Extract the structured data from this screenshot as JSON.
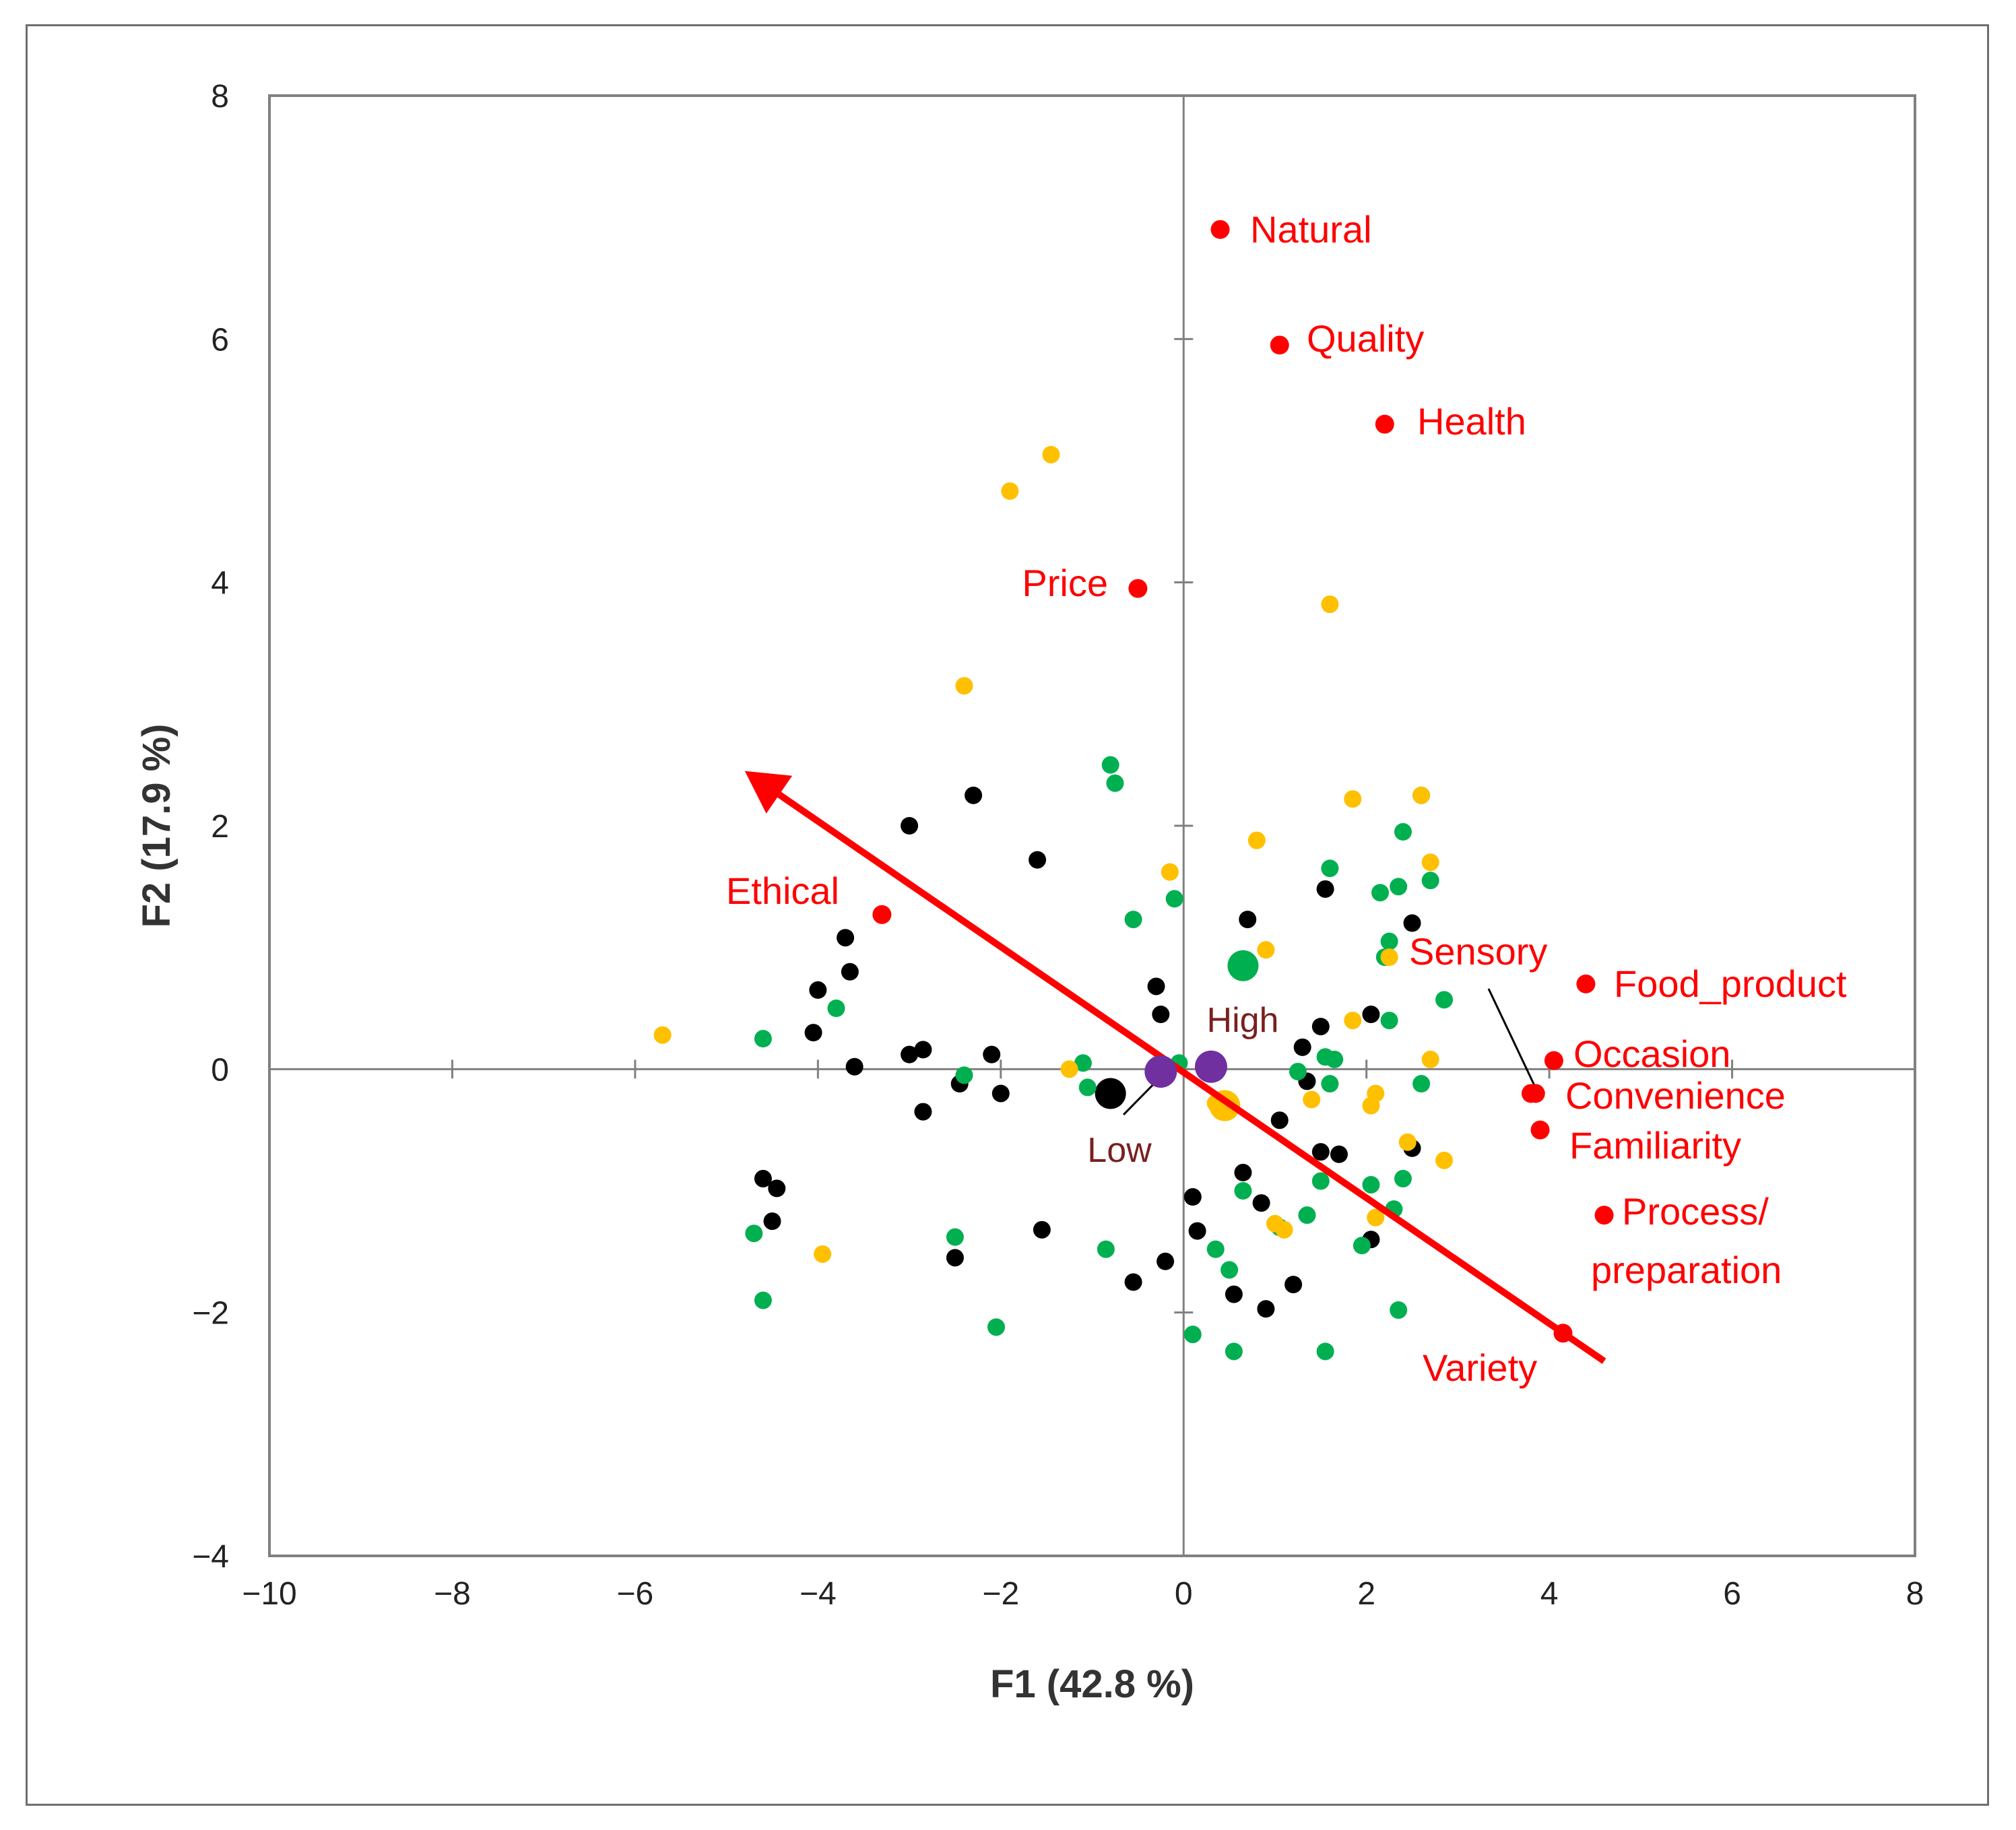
{
  "chart_data": {
    "type": "scatter",
    "title": "",
    "xlabel": "F1 (42.8 %)",
    "ylabel": "F2 (17.9 %)",
    "xlim": [
      -10,
      8
    ],
    "ylim": [
      -4,
      8
    ],
    "x_ticks": [
      -10,
      -8,
      -6,
      -4,
      -2,
      0,
      2,
      4,
      6,
      8
    ],
    "y_ticks": [
      -4,
      -2,
      0,
      2,
      4,
      6,
      8
    ],
    "grid": false,
    "colors": {
      "variables": "#ff0000",
      "groups": "#7030a0",
      "black": "#000000",
      "green": "#00b050",
      "orange": "#ffc000",
      "arrow": "#ff0000",
      "axes": "#808080"
    },
    "variables": [
      {
        "label": "Natural",
        "x": 0.4,
        "y": 6.9
      },
      {
        "label": "Quality",
        "x": 1.05,
        "y": 5.95
      },
      {
        "label": "Health",
        "x": 2.2,
        "y": 5.3
      },
      {
        "label": "Price",
        "x": -0.5,
        "y": 3.95
      },
      {
        "label": "Ethical",
        "x": -3.3,
        "y": 1.27
      },
      {
        "label": "Sensory",
        "x": 3.8,
        "y": -0.2
      },
      {
        "label": "Food_product",
        "x": 4.4,
        "y": 0.7
      },
      {
        "label": "Occasion",
        "x": 4.05,
        "y": 0.07
      },
      {
        "label": "Convenience",
        "x": 3.85,
        "y": -0.2
      },
      {
        "label": "Familiarity",
        "x": 3.9,
        "y": -0.5
      },
      {
        "label": "Process/",
        "label2": "preparation",
        "x": 4.6,
        "y": -1.2
      },
      {
        "label": "Variety",
        "x": 4.15,
        "y": -2.17
      }
    ],
    "groups": [
      {
        "label": "High",
        "x": 0.3,
        "y": 0.02
      },
      {
        "label": "Low",
        "x": -0.25,
        "y": -0.02
      }
    ],
    "arrow": {
      "from": [
        4.6,
        -2.4
      ],
      "to": [
        -4.8,
        2.45
      ]
    },
    "series": [
      {
        "name": "black",
        "points": [
          [
            -2.3,
            2.25
          ],
          [
            -3.0,
            2.0
          ],
          [
            -1.6,
            1.72
          ],
          [
            -3.7,
            1.08
          ],
          [
            -3.65,
            0.8
          ],
          [
            -4.0,
            0.65
          ],
          [
            -4.05,
            0.3
          ],
          [
            -3.6,
            0.02
          ],
          [
            -3.0,
            0.12
          ],
          [
            -2.85,
            0.16
          ],
          [
            -2.1,
            0.12
          ],
          [
            -2.0,
            -0.2
          ],
          [
            -2.45,
            -0.12
          ],
          [
            -2.85,
            -0.35
          ],
          [
            -4.6,
            -0.9
          ],
          [
            -4.45,
            -0.98
          ],
          [
            -4.5,
            -1.25
          ],
          [
            -2.5,
            -1.55
          ],
          [
            -1.55,
            -1.32
          ],
          [
            -0.55,
            -1.75
          ],
          [
            -0.2,
            -1.58
          ],
          [
            0.1,
            -1.05
          ],
          [
            0.15,
            -1.33
          ],
          [
            0.55,
            -1.85
          ],
          [
            0.65,
            -0.85
          ],
          [
            0.85,
            -1.1
          ],
          [
            0.9,
            -1.97
          ],
          [
            1.2,
            -1.77
          ],
          [
            1.05,
            -0.42
          ],
          [
            1.3,
            0.18
          ],
          [
            1.35,
            -0.1
          ],
          [
            1.5,
            0.35
          ],
          [
            1.5,
            -0.68
          ],
          [
            1.7,
            -0.7
          ],
          [
            1.55,
            1.48
          ],
          [
            0.7,
            1.23
          ],
          [
            -0.3,
            0.68
          ],
          [
            -0.25,
            0.45
          ],
          [
            2.05,
            0.45
          ],
          [
            2.5,
            1.2
          ],
          [
            2.5,
            -0.65
          ],
          [
            2.05,
            -1.4
          ]
        ],
        "big": [
          [
            -0.8,
            -0.2
          ]
        ]
      },
      {
        "name": "green",
        "points": [
          [
            -0.8,
            2.5
          ],
          [
            -0.75,
            2.35
          ],
          [
            -0.55,
            1.23
          ],
          [
            -0.1,
            1.4
          ],
          [
            -3.8,
            0.5
          ],
          [
            -4.6,
            0.25
          ],
          [
            -2.4,
            -0.05
          ],
          [
            -1.1,
            0.05
          ],
          [
            -1.05,
            -0.15
          ],
          [
            -0.05,
            0.05
          ],
          [
            -4.7,
            -1.35
          ],
          [
            -4.6,
            -1.9
          ],
          [
            -2.5,
            -1.38
          ],
          [
            -2.05,
            -2.12
          ],
          [
            -0.85,
            -1.48
          ],
          [
            0.1,
            -2.18
          ],
          [
            0.35,
            -1.48
          ],
          [
            0.5,
            -1.65
          ],
          [
            0.55,
            -2.32
          ],
          [
            0.65,
            -1.0
          ],
          [
            1.35,
            -1.2
          ],
          [
            1.5,
            -0.92
          ],
          [
            1.55,
            -2.32
          ],
          [
            1.55,
            0.1
          ],
          [
            1.6,
            -0.12
          ],
          [
            1.65,
            0.08
          ],
          [
            1.6,
            1.65
          ],
          [
            1.95,
            -1.45
          ],
          [
            2.05,
            -0.95
          ],
          [
            2.15,
            1.45
          ],
          [
            2.2,
            0.92
          ],
          [
            2.25,
            1.05
          ],
          [
            2.25,
            0.4
          ],
          [
            2.3,
            -1.15
          ],
          [
            2.35,
            1.5
          ],
          [
            2.4,
            1.95
          ],
          [
            2.4,
            -0.9
          ],
          [
            2.6,
            2.25
          ],
          [
            2.6,
            -0.12
          ],
          [
            2.7,
            1.55
          ],
          [
            2.85,
            0.57
          ],
          [
            2.35,
            -1.98
          ],
          [
            1.05,
            -1.3
          ],
          [
            1.25,
            -0.02
          ]
        ],
        "big": [
          [
            0.65,
            0.85
          ]
        ]
      },
      {
        "name": "orange",
        "points": [
          [
            -1.45,
            5.05
          ],
          [
            -1.9,
            4.75
          ],
          [
            1.6,
            3.82
          ],
          [
            -2.4,
            3.15
          ],
          [
            1.85,
            2.22
          ],
          [
            2.6,
            2.25
          ],
          [
            0.8,
            1.88
          ],
          [
            -0.15,
            1.62
          ],
          [
            2.7,
            1.7
          ],
          [
            0.9,
            0.98
          ],
          [
            2.25,
            0.92
          ],
          [
            -5.7,
            0.28
          ],
          [
            -1.25,
            0.0
          ],
          [
            1.85,
            0.4
          ],
          [
            2.7,
            0.08
          ],
          [
            2.1,
            -0.2
          ],
          [
            2.05,
            -0.3
          ],
          [
            1.4,
            -0.25
          ],
          [
            2.45,
            -0.6
          ],
          [
            2.85,
            -0.75
          ],
          [
            2.1,
            -1.22
          ],
          [
            0.45,
            -0.35
          ],
          [
            0.35,
            -0.28
          ],
          [
            1.0,
            -1.27
          ],
          [
            1.1,
            -1.32
          ],
          [
            -3.95,
            -1.52
          ]
        ],
        "big": [
          [
            0.45,
            -0.3
          ]
        ]
      }
    ]
  }
}
